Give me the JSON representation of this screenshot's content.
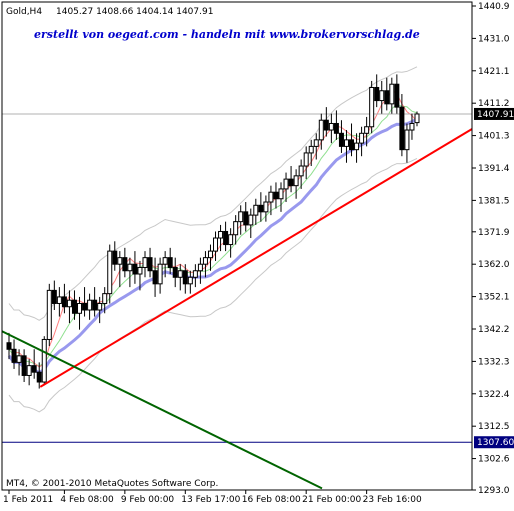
{
  "header": {
    "symbol": "Gold,H4",
    "ohlc": "1405.27 1408.66 1404.14 1407.91"
  },
  "watermark": "erstellt von oegeat.com - handeln mit www.brokervorschlag.de",
  "footer": "MT4, © 2001-2010 MetaQuotes Software Corp.",
  "colors": {
    "candle": "#000000",
    "ma_fast": "#ff8080",
    "ma_slow": "#9999ee",
    "ma_mid": "#90e090",
    "envelope": "#c8c8c8",
    "support_line": "#ff0000",
    "down_line": "#006400",
    "hline": "#000080",
    "price_line": "#b0b0b0"
  },
  "chart_data": {
    "type": "candlestick",
    "yticks": [
      1440.9,
      1431.0,
      1421.1,
      1411.2,
      1401.3,
      1391.4,
      1381.5,
      1371.9,
      1362.0,
      1352.1,
      1342.2,
      1332.3,
      1322.4,
      1312.5,
      1302.6,
      1293.0
    ],
    "ylim": [
      1293.0,
      1440.9
    ],
    "xticks": [
      "1 Feb 2011",
      "4 Feb 08:00",
      "9 Feb 00:00",
      "13 Feb 17:00",
      "16 Feb 08:00",
      "21 Feb 00:00",
      "23 Feb 16:00"
    ],
    "current_price": "1407.91",
    "hline_price": "1307.60",
    "candles": [
      [
        1338,
        1341,
        1333,
        1336
      ],
      [
        1336,
        1339,
        1330,
        1332
      ],
      [
        1332,
        1336,
        1328,
        1334
      ],
      [
        1334,
        1336,
        1326,
        1328
      ],
      [
        1328,
        1333,
        1325,
        1331
      ],
      [
        1331,
        1336,
        1327,
        1329
      ],
      [
        1329,
        1332,
        1324,
        1326
      ],
      [
        1326,
        1340,
        1325,
        1339
      ],
      [
        1339,
        1356,
        1337,
        1354
      ],
      [
        1354,
        1357,
        1348,
        1350
      ],
      [
        1350,
        1355,
        1346,
        1352
      ],
      [
        1352,
        1356,
        1347,
        1349
      ],
      [
        1349,
        1354,
        1344,
        1351
      ],
      [
        1351,
        1354,
        1345,
        1347
      ],
      [
        1347,
        1352,
        1342,
        1350
      ],
      [
        1350,
        1355,
        1346,
        1348
      ],
      [
        1348,
        1353,
        1345,
        1351
      ],
      [
        1351,
        1355,
        1346,
        1348
      ],
      [
        1348,
        1352,
        1344,
        1350
      ],
      [
        1350,
        1355,
        1347,
        1353
      ],
      [
        1353,
        1368,
        1350,
        1366
      ],
      [
        1366,
        1369,
        1360,
        1362
      ],
      [
        1362,
        1366,
        1355,
        1364
      ],
      [
        1364,
        1367,
        1358,
        1360
      ],
      [
        1360,
        1364,
        1355,
        1362
      ],
      [
        1362,
        1366,
        1356,
        1359
      ],
      [
        1359,
        1363,
        1354,
        1361
      ],
      [
        1361,
        1366,
        1358,
        1364
      ],
      [
        1364,
        1367,
        1358,
        1360
      ],
      [
        1360,
        1364,
        1352,
        1356
      ],
      [
        1356,
        1364,
        1353,
        1362
      ],
      [
        1362,
        1366,
        1358,
        1364
      ],
      [
        1364,
        1367,
        1359,
        1361
      ],
      [
        1361,
        1364,
        1355,
        1358
      ],
      [
        1358,
        1362,
        1354,
        1360
      ],
      [
        1360,
        1362,
        1353,
        1356
      ],
      [
        1356,
        1360,
        1353,
        1358
      ],
      [
        1358,
        1362,
        1355,
        1360
      ],
      [
        1360,
        1364,
        1356,
        1362
      ],
      [
        1362,
        1366,
        1358,
        1364
      ],
      [
        1364,
        1368,
        1360,
        1366
      ],
      [
        1366,
        1372,
        1363,
        1370
      ],
      [
        1370,
        1374,
        1366,
        1372
      ],
      [
        1372,
        1375,
        1366,
        1368
      ],
      [
        1368,
        1373,
        1364,
        1371
      ],
      [
        1371,
        1377,
        1368,
        1375
      ],
      [
        1375,
        1380,
        1371,
        1378
      ],
      [
        1378,
        1381,
        1372,
        1374
      ],
      [
        1374,
        1379,
        1370,
        1377
      ],
      [
        1377,
        1382,
        1374,
        1380
      ],
      [
        1380,
        1384,
        1375,
        1378
      ],
      [
        1378,
        1383,
        1375,
        1381
      ],
      [
        1381,
        1386,
        1377,
        1384
      ],
      [
        1384,
        1387,
        1379,
        1382
      ],
      [
        1382,
        1387,
        1378,
        1385
      ],
      [
        1385,
        1390,
        1381,
        1388
      ],
      [
        1388,
        1392,
        1384,
        1386
      ],
      [
        1386,
        1391,
        1382,
        1389
      ],
      [
        1389,
        1394,
        1385,
        1392
      ],
      [
        1392,
        1398,
        1388,
        1396
      ],
      [
        1396,
        1400,
        1392,
        1398
      ],
      [
        1398,
        1402,
        1394,
        1400
      ],
      [
        1400,
        1408,
        1397,
        1406
      ],
      [
        1406,
        1410,
        1401,
        1403
      ],
      [
        1403,
        1408,
        1399,
        1405
      ],
      [
        1405,
        1409,
        1400,
        1402
      ],
      [
        1402,
        1406,
        1396,
        1398
      ],
      [
        1398,
        1403,
        1393,
        1400
      ],
      [
        1400,
        1405,
        1395,
        1397
      ],
      [
        1397,
        1402,
        1393,
        1399
      ],
      [
        1399,
        1404,
        1395,
        1402
      ],
      [
        1402,
        1407,
        1398,
        1404
      ],
      [
        1404,
        1418,
        1402,
        1416
      ],
      [
        1416,
        1420,
        1410,
        1412
      ],
      [
        1412,
        1418,
        1408,
        1415
      ],
      [
        1415,
        1419,
        1409,
        1411
      ],
      [
        1411,
        1419,
        1408,
        1417
      ],
      [
        1417,
        1420,
        1408,
        1410
      ],
      [
        1410,
        1414,
        1395,
        1397
      ],
      [
        1397,
        1405,
        1393,
        1403
      ],
      [
        1403,
        1408,
        1400,
        1405
      ],
      [
        1405.27,
        1408.66,
        1404.14,
        1407.91
      ]
    ]
  }
}
